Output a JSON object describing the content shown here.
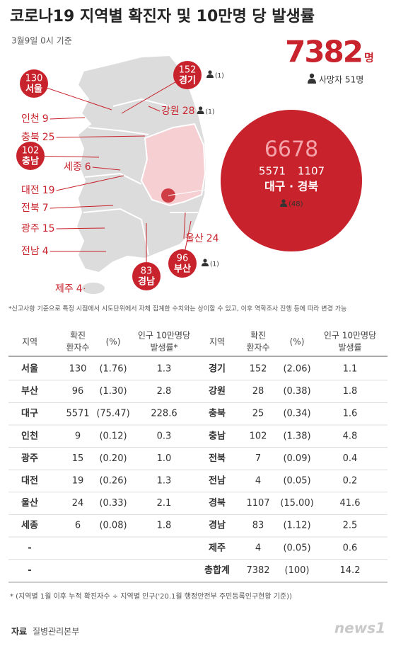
{
  "header": {
    "title": "코로나19 지역별 확진자 및 10만명 당 발생률",
    "date": "3월9일 0시 기준",
    "total": "7382",
    "total_unit": "명",
    "deaths": "사망자 51명"
  },
  "map": {
    "regions": [
      {
        "name": "서울",
        "cases": "130"
      },
      {
        "name": "경기",
        "cases": "152",
        "deaths": "(1)"
      },
      {
        "name": "인천",
        "cases": "9"
      },
      {
        "name": "강원",
        "cases": "28",
        "deaths": "(1)"
      },
      {
        "name": "충북",
        "cases": "25"
      },
      {
        "name": "충남",
        "cases": "102"
      },
      {
        "name": "세종",
        "cases": "6"
      },
      {
        "name": "대전",
        "cases": "19"
      },
      {
        "name": "전북",
        "cases": "7"
      },
      {
        "name": "광주",
        "cases": "15"
      },
      {
        "name": "전남",
        "cases": "4"
      },
      {
        "name": "울산",
        "cases": "24"
      },
      {
        "name": "부산",
        "cases": "96",
        "deaths": "(1)"
      },
      {
        "name": "경남",
        "cases": "83"
      },
      {
        "name": "제주",
        "cases": "4"
      }
    ],
    "daegu_gyeongbuk": {
      "total": "6678",
      "daegu": "5571",
      "gyeongbuk": "1107",
      "label": "대구 · 경북",
      "deaths": "(48)"
    }
  },
  "note": "*신고사항 기준으로 특정 시점에서 시도단위에서 자체 집계한 수치와는 상이할 수 있고, 이후 역학조사 진행 등에 따라 변경 가능",
  "table": {
    "headers": [
      [
        "지역"
      ],
      [
        "확진",
        "환자수"
      ],
      [
        "(%)"
      ],
      [
        "인구 10만명당",
        "발생률*"
      ],
      [
        "지역"
      ],
      [
        "확진",
        "환자수"
      ],
      [
        "(%)"
      ],
      [
        "인구 10만명당",
        "발생률"
      ]
    ],
    "rows": [
      [
        "서울",
        "130",
        "(1.76)",
        "1.3",
        "경기",
        "152",
        "(2.06)",
        "1.1"
      ],
      [
        "부산",
        "96",
        "(1.30)",
        "2.8",
        "강원",
        "28",
        "(0.38)",
        "1.8"
      ],
      [
        "대구",
        "5571",
        "(75.47)",
        "228.6",
        "충북",
        "25",
        "(0.34)",
        "1.6"
      ],
      [
        "인천",
        "9",
        "(0.12)",
        "0.3",
        "충남",
        "102",
        "(1.38)",
        "4.8"
      ],
      [
        "광주",
        "15",
        "(0.20)",
        "1.0",
        "전북",
        "7",
        "(0.09)",
        "0.4"
      ],
      [
        "대전",
        "19",
        "(0.26)",
        "1.3",
        "전남",
        "4",
        "(0.05)",
        "0.2"
      ],
      [
        "울산",
        "24",
        "(0.33)",
        "2.1",
        "경북",
        "1107",
        "(15.00)",
        "41.6"
      ],
      [
        "세종",
        "6",
        "(0.08)",
        "1.8",
        "경남",
        "83",
        "(1.12)",
        "2.5"
      ],
      [
        "-",
        "",
        "",
        "",
        "제주",
        "4",
        "(0.05)",
        "0.6"
      ],
      [
        "-",
        "",
        "",
        "",
        "총합계",
        "7382",
        "(100)",
        "14.2"
      ]
    ]
  },
  "footnote": "* (지역별 1월 이후 누적 확진자수 ÷ 지역별 인구('20.1월 행정안전부 주민등록인구현황 기준))",
  "source": {
    "label": "자료",
    "text": "질병관리본부"
  },
  "logo": "news1"
}
